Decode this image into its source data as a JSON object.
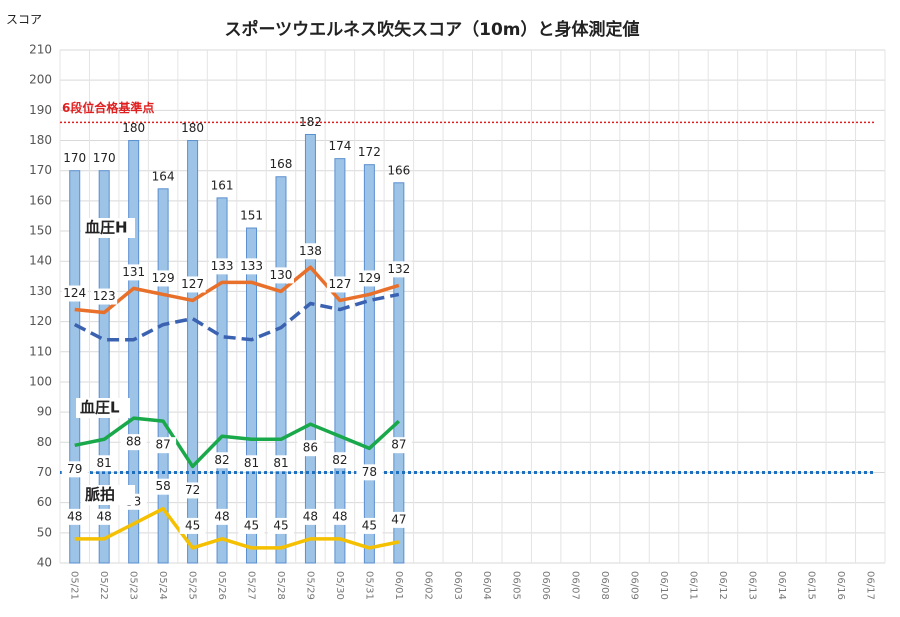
{
  "chart_data": {
    "type": "bar-line",
    "title": "スポーツウエルネス吹矢スコア（10m）と身体測定値",
    "y_label": "スコア",
    "categories": [
      "05/21",
      "05/22",
      "05/23",
      "05/24",
      "05/25",
      "05/26",
      "05/27",
      "05/28",
      "05/29",
      "05/30",
      "05/31",
      "06/01",
      "06/02",
      "06/03",
      "06/04",
      "06/05",
      "06/06",
      "06/07",
      "06/08",
      "06/09",
      "06/10",
      "06/11",
      "06/12",
      "06/13",
      "06/14",
      "06/15",
      "06/16",
      "06/17"
    ],
    "series": [
      {
        "kind": "bar",
        "color": "#9dc3e6",
        "labels": true,
        "values": [
          170,
          170,
          180,
          164,
          180,
          161,
          151,
          168,
          182,
          174,
          172,
          166,
          null,
          null,
          null,
          null,
          null,
          null,
          null,
          null,
          null,
          null,
          null,
          null,
          null,
          null,
          null,
          null
        ]
      },
      {
        "kind": "line",
        "name": "血圧H",
        "color": "#e8702a",
        "labels": true,
        "values": [
          124,
          123,
          131,
          129,
          127,
          133,
          133,
          130,
          138,
          127,
          129,
          132,
          null,
          null,
          null,
          null,
          null,
          null,
          null,
          null,
          null,
          null,
          null,
          null,
          null,
          null,
          null,
          null
        ]
      },
      {
        "kind": "line",
        "color": "#3a62b0",
        "dashed": true,
        "labels": false,
        "values": [
          119,
          114,
          114,
          119,
          121,
          115,
          114,
          118,
          126,
          124,
          127,
          129,
          null,
          null,
          null,
          null,
          null,
          null,
          null,
          null,
          null,
          null,
          null,
          null,
          null,
          null,
          null,
          null
        ]
      },
      {
        "kind": "line",
        "name": "血圧L",
        "color": "#19a84a",
        "labels": true,
        "values": [
          79,
          81,
          88,
          87,
          72,
          82,
          81,
          81,
          86,
          82,
          78,
          87,
          null,
          null,
          null,
          null,
          null,
          null,
          null,
          null,
          null,
          null,
          null,
          null,
          null,
          null,
          null,
          null
        ]
      },
      {
        "kind": "line",
        "name": "脈拍",
        "color": "#f5c000",
        "labels": true,
        "values": [
          48,
          48,
          53,
          58,
          45,
          48,
          45,
          45,
          48,
          48,
          45,
          47,
          null,
          null,
          null,
          null,
          null,
          null,
          null,
          null,
          null,
          null,
          null,
          null,
          null,
          null,
          null,
          null
        ]
      }
    ],
    "reference_lines": [
      {
        "label": "6段位合格基準点",
        "value": 186,
        "color": "#e02020"
      },
      {
        "value": 70,
        "color": "#1f6fbf"
      }
    ],
    "ylim": [
      40,
      210
    ],
    "yticks": [
      40,
      50,
      60,
      70,
      80,
      90,
      100,
      110,
      120,
      130,
      140,
      150,
      160,
      170,
      180,
      190,
      200,
      210
    ],
    "grid": true
  }
}
